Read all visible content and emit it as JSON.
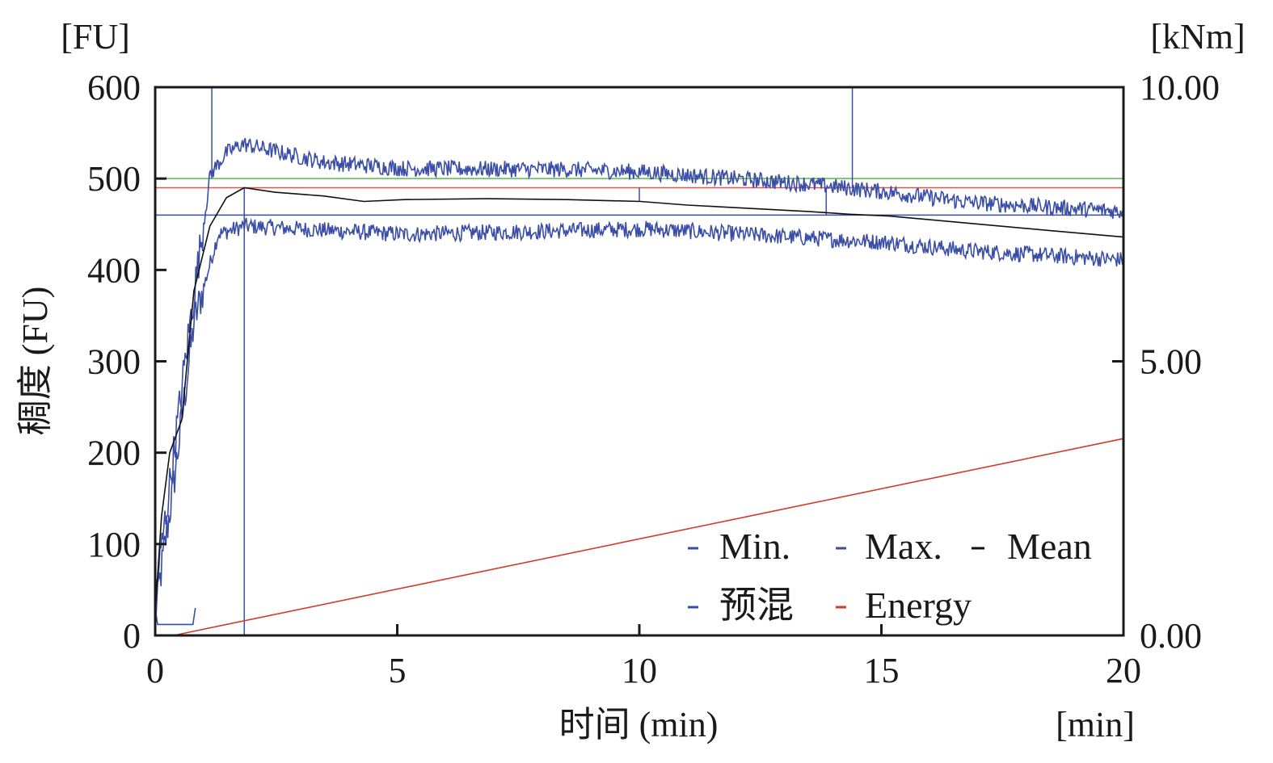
{
  "chart_data": {
    "type": "line",
    "title": "",
    "xlabel": "时间 (min)",
    "ylabel": "稠度 (FU)",
    "left_unit": "[FU]",
    "right_unit": "[kNm]",
    "x_unit": "[min]",
    "xlim": [
      0,
      20
    ],
    "ylim": [
      0,
      600
    ],
    "y2lim": [
      0,
      10
    ],
    "x_ticks": [
      "0",
      "5",
      "10",
      "15",
      "20"
    ],
    "y_ticks": [
      "0",
      "100",
      "200",
      "300",
      "400",
      "500",
      "600"
    ],
    "y2_ticks": [
      "0.00",
      "5.00",
      "10.00"
    ],
    "grid": false,
    "legend_position": "bottom-right",
    "noise_amplitude_FU": 9,
    "series": [
      {
        "name": "Min.",
        "axis": "left",
        "color": "#3a4ea8",
        "noisy": true,
        "x": [
          0,
          0.38,
          0.8,
          1.3,
          1.84,
          5.15,
          10.16,
          13.5,
          15.16,
          16.8,
          20
        ],
        "y": [
          24,
          165,
          342,
          439,
          448,
          439,
          445,
          435,
          430,
          421,
          411
        ]
      },
      {
        "name": "Max.",
        "axis": "left",
        "color": "#3a4ea8",
        "noisy": true,
        "x": [
          0,
          0.3,
          0.72,
          1.14,
          1.47,
          1.8,
          3.47,
          5.15,
          8.5,
          10.16,
          13.5,
          15.16,
          16.8,
          20
        ],
        "y": [
          42,
          165,
          342,
          505,
          528,
          538,
          518,
          511,
          510,
          507,
          494,
          485,
          474,
          464
        ]
      },
      {
        "name": "Mean",
        "axis": "left",
        "color": "#111111",
        "noisy": false,
        "x": [
          0,
          0.13,
          0.3,
          0.55,
          0.8,
          1.13,
          1.47,
          1.84,
          2.47,
          3.47,
          4.31,
          5.15,
          6.84,
          8.5,
          10.02,
          10.99,
          13.49,
          14.33,
          15.16,
          16.82,
          18.5,
          20
        ],
        "y": [
          24,
          130,
          200,
          236,
          377,
          448,
          479,
          490,
          485,
          481,
          475,
          477,
          478,
          477,
          475,
          471,
          464,
          461,
          459,
          451,
          443,
          436
        ]
      },
      {
        "name": "预混",
        "axis": "left",
        "color": "#3a4ea8",
        "noisy": false,
        "x": [
          0,
          0.05,
          0.78,
          0.83
        ],
        "y": [
          30,
          12,
          12,
          30
        ]
      },
      {
        "name": "Energy",
        "axis": "right",
        "color": "#d23a2a",
        "noisy": false,
        "x": [
          0.38,
          20
        ],
        "y": [
          0,
          3.59
        ]
      }
    ],
    "reference_lines": {
      "horizontal": [
        {
          "y": 500,
          "color": "#5cb84a"
        },
        {
          "y": 490,
          "color": "#e0554a"
        },
        {
          "y": 460,
          "color": "#3a4ea8"
        }
      ],
      "vertical": [
        {
          "x": 1.17,
          "y_from": 500,
          "y_to": 600,
          "color": "#3a4ea8"
        },
        {
          "x": 1.84,
          "y_from": 0,
          "y_to": 490,
          "color": "#3a4ea8"
        },
        {
          "x": 10.0,
          "y_from": 475,
          "y_to": 490,
          "color": "#3a4ea8"
        },
        {
          "x": 13.86,
          "y_from": 460,
          "y_to": 490,
          "color": "#3a4ea8"
        },
        {
          "x": 14.4,
          "y_from": 490,
          "y_to": 600,
          "color": "#3a4ea8"
        }
      ]
    }
  }
}
